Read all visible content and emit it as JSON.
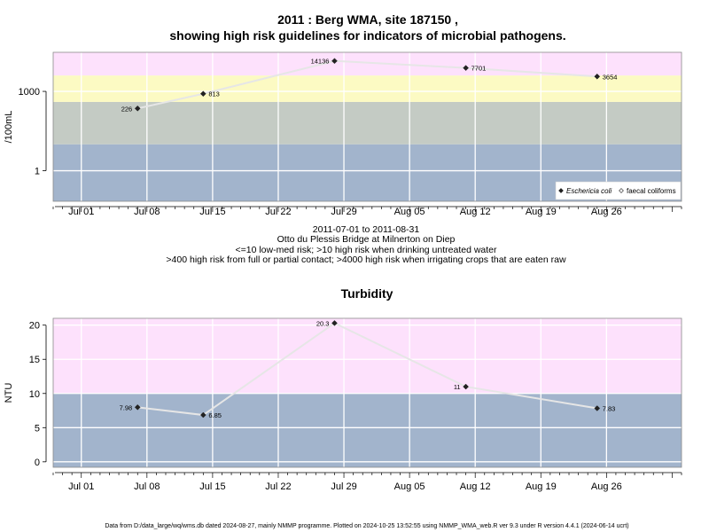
{
  "titles": {
    "top_line1": "2011 : Berg WMA, site 187150 ,",
    "top_line2": "showing high risk guidelines for indicators of microbial pathogens.",
    "bottom": "Turbidity"
  },
  "notes": {
    "date_range": "2011-07-01 to 2011-08-31",
    "site": "Otto du Plessis Bridge at Milnerton on Diep",
    "line1": "<=10 low-med risk; >10 high risk when drinking untreated water",
    "line2": ">400 high risk from full or partial contact; >4000 high risk when irrigating crops that are eaten raw"
  },
  "footer": "Data from D:/data_large/wq/wms.db dated 2024-08-27, mainly NMMP programme. Plotted on 2024-10-25 13:52:55 using NMMP_WMA_web.R ver 9.3 under R version 4.4.1 (2024-06-14 ucrt)",
  "colors": {
    "band_blue": "#a2b4cc",
    "band_green": "#c4cbc4",
    "band_yellow": "#fcfac3",
    "band_pink": "#fde1fc",
    "grid": "#ffffff",
    "line": "#e6e6e6",
    "point": "#222222"
  },
  "x_ticks": [
    "Jul 01",
    "Jul 08",
    "Jul 15",
    "Jul 22",
    "Jul 29",
    "Aug 05",
    "Aug 12",
    "Aug 19",
    "Aug 26"
  ],
  "chart_data": [
    {
      "type": "line",
      "title": "2011 : Berg WMA, site 187150 , showing high risk guidelines for indicators of microbial pathogens.",
      "ylabel": "/100mL",
      "y_scale": "log",
      "y_ticks": [
        1,
        1000
      ],
      "ylim": [
        0.07,
        30000
      ],
      "xlim": [
        "2011-06-28",
        "2011-09-03"
      ],
      "bands": [
        {
          "from": 0.07,
          "to": 10,
          "color": "band_blue"
        },
        {
          "from": 10,
          "to": 400,
          "color": "band_green"
        },
        {
          "from": 400,
          "to": 4000,
          "color": "band_yellow"
        },
        {
          "from": 4000,
          "to": 30000,
          "color": "band_pink"
        }
      ],
      "series": [
        {
          "name": "Eschericia coli",
          "marker": "filled-diamond",
          "points": [
            {
              "x": "2011-07-07",
              "y": 226,
              "label": "226",
              "label_side": "left"
            },
            {
              "x": "2011-07-14",
              "y": 813,
              "label": "813",
              "label_side": "right"
            },
            {
              "x": "2011-07-28",
              "y": 14136,
              "label": "14136",
              "label_side": "left"
            },
            {
              "x": "2011-08-11",
              "y": 7701,
              "label": "7701",
              "label_side": "right"
            },
            {
              "x": "2011-08-25",
              "y": 3654,
              "label": "3654",
              "label_side": "right"
            }
          ]
        }
      ],
      "legend": {
        "position": "bottom-right",
        "entries": [
          {
            "label": "Eschericia coli",
            "marker": "filled-diamond",
            "italic": true
          },
          {
            "label": "faecal coliforms",
            "marker": "open-diamond",
            "italic": false
          }
        ]
      }
    },
    {
      "type": "line",
      "title": "Turbidity",
      "ylabel": "NTU",
      "y_scale": "linear",
      "y_ticks": [
        0,
        5,
        10,
        15,
        20
      ],
      "ylim": [
        -0.8,
        21
      ],
      "xlim": [
        "2011-06-28",
        "2011-09-03"
      ],
      "bands": [
        {
          "from": -0.8,
          "to": 10,
          "color": "band_blue"
        },
        {
          "from": 10,
          "to": 21,
          "color": "band_pink"
        }
      ],
      "series": [
        {
          "marker": "filled-diamond",
          "points": [
            {
              "x": "2011-07-07",
              "y": 7.98,
              "label": "7.98",
              "label_side": "left"
            },
            {
              "x": "2011-07-14",
              "y": 6.85,
              "label": "6.85",
              "label_side": "right"
            },
            {
              "x": "2011-07-28",
              "y": 20.3,
              "label": "20.3",
              "label_side": "left"
            },
            {
              "x": "2011-08-11",
              "y": 11,
              "label": "11",
              "label_side": "left"
            },
            {
              "x": "2011-08-25",
              "y": 7.83,
              "label": "7.83",
              "label_side": "right"
            }
          ]
        }
      ]
    }
  ]
}
